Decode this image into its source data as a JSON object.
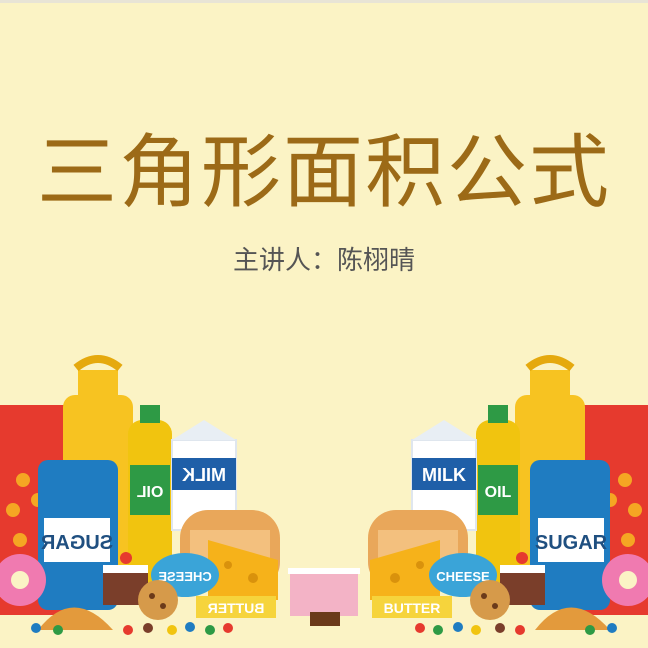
{
  "slide": {
    "title": "三角形面积公式",
    "presenter": "主讲人：陈栩晴"
  },
  "illustration": {
    "labels": {
      "milk": "MILK",
      "oil": "OIL",
      "sugar": "SUGAR",
      "cheese": "CHEESE",
      "butter": "BUTTER"
    }
  },
  "colors": {
    "background": "#fbf3c5",
    "title": "#9c6a17",
    "subtitle": "#555555"
  }
}
